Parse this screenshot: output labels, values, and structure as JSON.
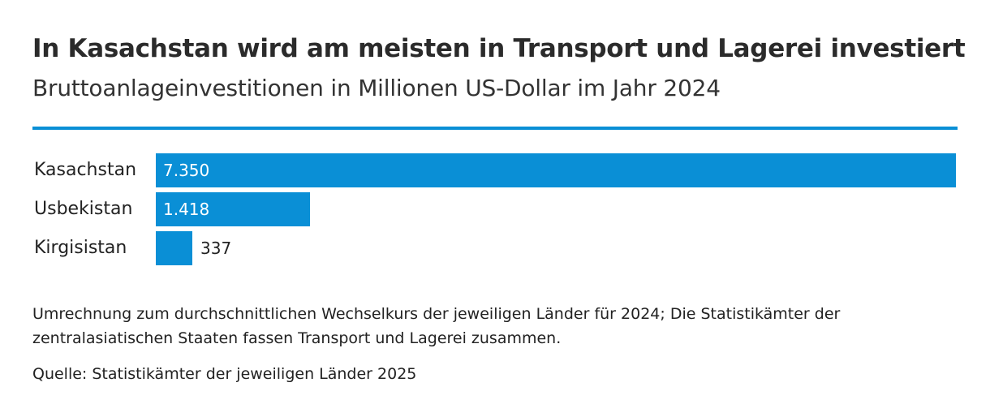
{
  "chart_data": {
    "type": "bar",
    "orientation": "horizontal",
    "title": "In Kasachstan wird am meisten in Transport und Lagerei investiert",
    "subtitle": "Bruttoanlageinvestitionen in Millionen US-Dollar im Jahr 2024",
    "categories": [
      "Kasachstan",
      "Usbekistan",
      "Kirgisistan"
    ],
    "values": [
      7350,
      1418,
      337
    ],
    "value_labels": [
      "7.350",
      "1.418",
      "337"
    ],
    "xlim": [
      0,
      7350
    ],
    "grid": false,
    "legend": "none",
    "colors": {
      "bar": "#0a8fd6",
      "rule": "#0a8fd6"
    }
  },
  "footer": {
    "note": "Umrechnung zum durchschnittlichen Wechselkurs der jeweiligen Länder für 2024; Die Statistikämter der zentralasiatischen Staaten fassen Transport und Lagerei zusammen.",
    "source": "Quelle: Statistikämter der jeweiligen Länder 2025"
  }
}
